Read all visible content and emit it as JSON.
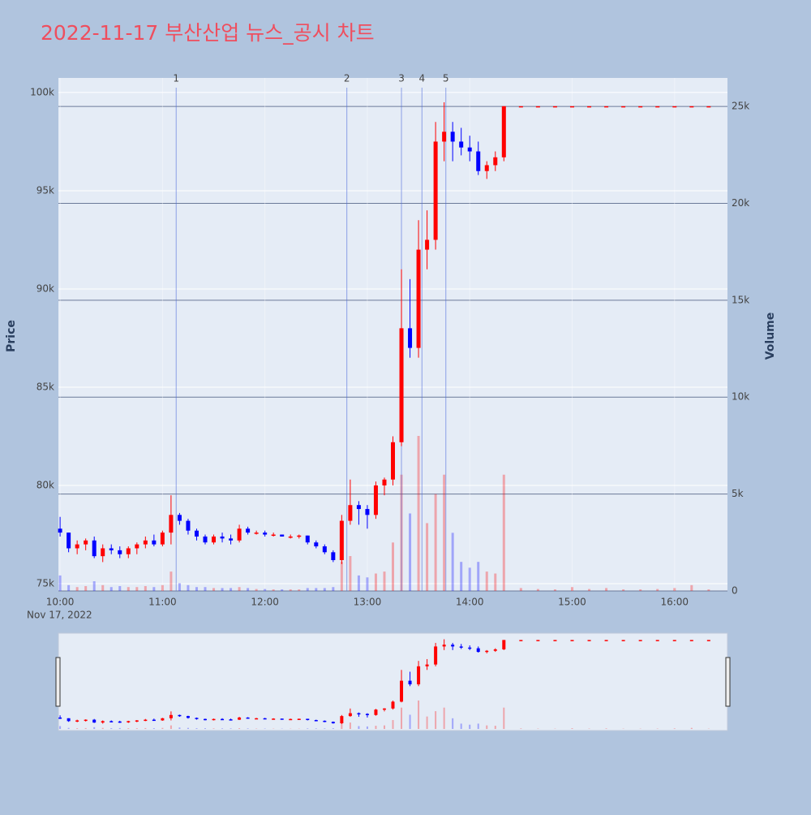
{
  "chart_data": {
    "type": "candlestick",
    "title": "2022-11-17 부산산업 뉴스_공시 차트",
    "ylabel": "Price",
    "y2label": "Volume",
    "x_sublabel": "Nov 17, 2022",
    "increasing_color": "#ff0000",
    "decreasing_color": "#0000ff",
    "xlim": [
      "2022-11-17 09:59",
      "2022-11-17 16:31"
    ],
    "xticks": [
      {
        "value": "2022-11-17 10:00",
        "label": "10:00"
      },
      {
        "value": "2022-11-17 11:00",
        "label": "11:00"
      },
      {
        "value": "2022-11-17 12:00",
        "label": "12:00"
      },
      {
        "value": "2022-11-17 13:00",
        "label": "13:00"
      },
      {
        "value": "2022-11-17 14:00",
        "label": "14:00"
      },
      {
        "value": "2022-11-17 15:00",
        "label": "15:00"
      },
      {
        "value": "2022-11-17 16:00",
        "label": "16:00"
      }
    ],
    "ylim": [
      74630,
      100740
    ],
    "yticks": [
      {
        "value": 75000,
        "label": "75k"
      },
      {
        "value": 80000,
        "label": "80k"
      },
      {
        "value": 85000,
        "label": "85k"
      },
      {
        "value": 90000,
        "label": "90k"
      },
      {
        "value": 95000,
        "label": "95k"
      },
      {
        "value": 100000,
        "label": "100k"
      }
    ],
    "y2lim": [
      0,
      26470
    ],
    "y2ticks": [
      0,
      {
        "value": 5000,
        "label": "5k"
      },
      {
        "value": 10000,
        "label": "10k"
      },
      {
        "value": 15000,
        "label": "15k"
      },
      {
        "value": 20000,
        "label": "20k"
      },
      {
        "value": 25000,
        "label": "25k"
      }
    ],
    "annotations": [
      {
        "label": "1",
        "x": "2022-11-17 11:08"
      },
      {
        "label": "2",
        "x": "2022-11-17 12:48"
      },
      {
        "label": "3",
        "x": "2022-11-17 13:20"
      },
      {
        "label": "4",
        "x": "2022-11-17 13:32"
      },
      {
        "label": "5",
        "x": "2022-11-17 13:46"
      }
    ],
    "x": [
      "2022-11-17 10:00",
      "2022-11-17 10:05",
      "2022-11-17 10:10",
      "2022-11-17 10:15",
      "2022-11-17 10:20",
      "2022-11-17 10:25",
      "2022-11-17 10:30",
      "2022-11-17 10:35",
      "2022-11-17 10:40",
      "2022-11-17 10:45",
      "2022-11-17 10:50",
      "2022-11-17 10:55",
      "2022-11-17 11:00",
      "2022-11-17 11:05",
      "2022-11-17 11:10",
      "2022-11-17 11:15",
      "2022-11-17 11:20",
      "2022-11-17 11:25",
      "2022-11-17 11:30",
      "2022-11-17 11:35",
      "2022-11-17 11:40",
      "2022-11-17 11:45",
      "2022-11-17 11:50",
      "2022-11-17 11:55",
      "2022-11-17 12:00",
      "2022-11-17 12:05",
      "2022-11-17 12:10",
      "2022-11-17 12:15",
      "2022-11-17 12:20",
      "2022-11-17 12:25",
      "2022-11-17 12:30",
      "2022-11-17 12:35",
      "2022-11-17 12:40",
      "2022-11-17 12:45",
      "2022-11-17 12:50",
      "2022-11-17 12:55",
      "2022-11-17 13:00",
      "2022-11-17 13:05",
      "2022-11-17 13:10",
      "2022-11-17 13:15",
      "2022-11-17 13:20",
      "2022-11-17 13:25",
      "2022-11-17 13:30",
      "2022-11-17 13:35",
      "2022-11-17 13:40",
      "2022-11-17 13:45",
      "2022-11-17 13:50",
      "2022-11-17 13:55",
      "2022-11-17 14:00",
      "2022-11-17 14:05",
      "2022-11-17 14:10",
      "2022-11-17 14:15",
      "2022-11-17 14:20",
      "2022-11-17 14:30",
      "2022-11-17 14:40",
      "2022-11-17 14:50",
      "2022-11-17 15:00",
      "2022-11-17 15:10",
      "2022-11-17 15:20",
      "2022-11-17 15:30",
      "2022-11-17 15:40",
      "2022-11-17 15:50",
      "2022-11-17 16:00",
      "2022-11-17 16:10",
      "2022-11-17 16:20"
    ],
    "open": [
      77800,
      77600,
      76800,
      77000,
      77200,
      76400,
      76800,
      76700,
      76500,
      76800,
      77000,
      77200,
      77000,
      77600,
      78500,
      78200,
      77700,
      77400,
      77100,
      77400,
      77300,
      77200,
      77800,
      77600,
      77600,
      77500,
      77500,
      77400,
      77400,
      77450,
      77100,
      76900,
      76600,
      76200,
      78200,
      79000,
      78800,
      78500,
      80000,
      80300,
      82200,
      88000,
      87000,
      92000,
      92500,
      97500,
      98000,
      97500,
      97200,
      97000,
      96000,
      96300,
      96700,
      99300,
      99300,
      99300,
      99300,
      99300,
      99300,
      99300,
      99300,
      99300,
      99300,
      99300,
      99300
    ],
    "high": [
      78400,
      77600,
      77200,
      77300,
      77400,
      77000,
      77000,
      76900,
      76900,
      77100,
      77400,
      77500,
      77700,
      79500,
      78600,
      78300,
      77800,
      77500,
      77500,
      77600,
      77500,
      78000,
      77900,
      77700,
      77700,
      77600,
      77500,
      77500,
      77500,
      77450,
      77200,
      77000,
      76700,
      78500,
      80300,
      79200,
      79000,
      80200,
      80400,
      82500,
      91000,
      90500,
      93500,
      94000,
      98500,
      99500,
      98500,
      98200,
      97800,
      97500,
      96500,
      97000,
      99300,
      99300,
      99300,
      99300,
      99300,
      99300,
      99300,
      99300,
      99300,
      99300,
      99300,
      99300,
      99300
    ],
    "low": [
      77400,
      76600,
      76500,
      76700,
      76300,
      76100,
      76500,
      76300,
      76300,
      76500,
      76800,
      76900,
      76900,
      77000,
      78000,
      77500,
      77200,
      77000,
      77000,
      77100,
      77000,
      77100,
      77500,
      77500,
      77400,
      77400,
      77400,
      77300,
      77300,
      77000,
      76800,
      76500,
      76100,
      76000,
      78000,
      78000,
      77800,
      78300,
      79500,
      80000,
      82000,
      86500,
      86500,
      91000,
      92000,
      96500,
      96500,
      96800,
      96500,
      95800,
      95600,
      96000,
      96500,
      99300,
      99300,
      99300,
      99300,
      99300,
      99300,
      99300,
      99300,
      99300,
      99300,
      99300,
      99300
    ],
    "close": [
      77600,
      76800,
      77000,
      77200,
      76400,
      76800,
      76700,
      76500,
      76800,
      77000,
      77200,
      77000,
      77600,
      78500,
      78200,
      77700,
      77400,
      77100,
      77400,
      77300,
      77200,
      77800,
      77600,
      77600,
      77500,
      77500,
      77400,
      77400,
      77450,
      77100,
      76900,
      76600,
      76200,
      78200,
      79000,
      78800,
      78500,
      80000,
      80300,
      82200,
      88000,
      87000,
      92000,
      92500,
      97500,
      98000,
      97500,
      97200,
      97000,
      96000,
      96300,
      96700,
      99300,
      99300,
      99300,
      99300,
      99300,
      99300,
      99300,
      99300,
      99300,
      99300,
      99300,
      99300,
      99300
    ],
    "volume": [
      800,
      300,
      200,
      250,
      500,
      300,
      200,
      250,
      200,
      200,
      250,
      200,
      300,
      1000,
      400,
      300,
      200,
      200,
      150,
      150,
      150,
      200,
      150,
      100,
      100,
      80,
      80,
      80,
      80,
      150,
      150,
      150,
      200,
      1500,
      1800,
      800,
      700,
      900,
      1000,
      2500,
      6000,
      4000,
      8000,
      3500,
      5000,
      6000,
      3000,
      1500,
      1200,
      1500,
      1000,
      900,
      6000,
      150,
      100,
      80,
      200,
      100,
      150,
      80,
      80,
      100,
      150,
      300,
      80
    ]
  }
}
